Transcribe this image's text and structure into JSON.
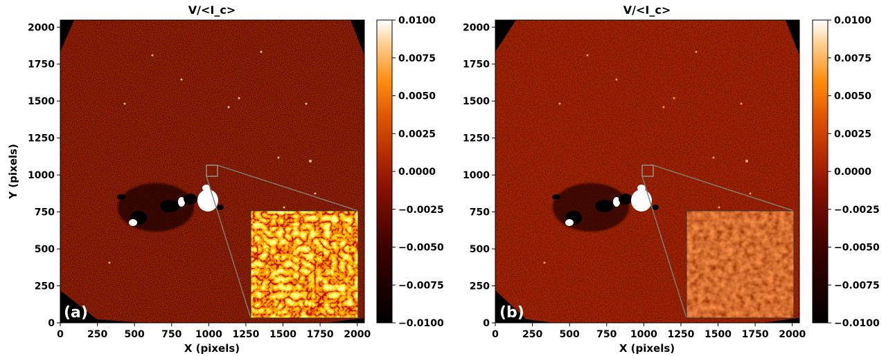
{
  "figure": {
    "panels": [
      {
        "label": "(a)",
        "title": "V/<I_c>",
        "xlabel": "X (pixels)",
        "ylabel": "Y (pixels)",
        "xticks": [
          "0",
          "250",
          "500",
          "750",
          "1000",
          "1250",
          "1500",
          "1750",
          "2000"
        ],
        "yticks": [
          "0",
          "250",
          "500",
          "750",
          "1000",
          "1250",
          "1500",
          "1750",
          "2000"
        ],
        "colorbar": {
          "ticks": [
            "0.0100",
            "0.0075",
            "0.0050",
            "0.0025",
            "0.0000",
            "−0.0025",
            "−0.0050",
            "−0.0075",
            "−0.0100"
          ],
          "range": [
            -0.01,
            0.01
          ],
          "colormap": "gist_heat"
        },
        "inset": "noisy"
      },
      {
        "label": "(b)",
        "title": "V/<I_c>",
        "xlabel": "X (pixels)",
        "ylabel": "",
        "xticks": [
          "0",
          "250",
          "500",
          "750",
          "1000",
          "1250",
          "1500",
          "1750",
          "2000"
        ],
        "yticks": [
          "0",
          "250",
          "500",
          "750",
          "1000",
          "1250",
          "1500",
          "1750",
          "2000"
        ],
        "colorbar": {
          "ticks": [
            "0.0100",
            "0.0075",
            "0.0050",
            "0.0025",
            "0.0000",
            "−0.0025",
            "−0.0050",
            "−0.0075",
            "−0.0100"
          ],
          "range": [
            -0.01,
            0.01
          ],
          "colormap": "gist_heat"
        },
        "inset": "smooth"
      }
    ],
    "colors": {
      "background_field": "#a92300",
      "off_disk": "#000000",
      "positive_polarity": "#ffffff",
      "negative_polarity": "#000000",
      "zoom_lines": "#808080"
    }
  }
}
